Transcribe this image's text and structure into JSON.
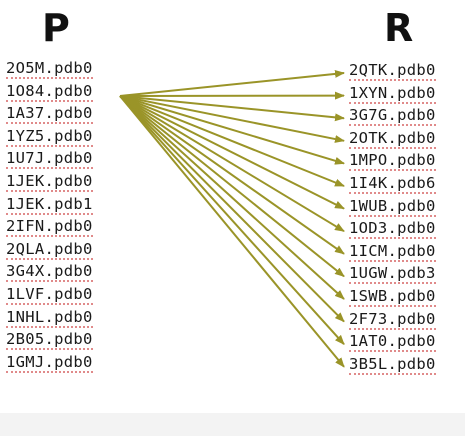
{
  "titles": {
    "left": "P",
    "right": "R"
  },
  "left_items": [
    "2O5M.pdb0",
    "1O84.pdb0",
    "1A37.pdb0",
    "1YZ5.pdb0",
    "1U7J.pdb0",
    "1JEK.pdb0",
    "1JEK.pdb1",
    "2IFN.pdb0",
    "2QLA.pdb0",
    "3G4X.pdb0",
    "1LVF.pdb0",
    "1NHL.pdb0",
    "2B05.pdb0",
    "1GMJ.pdb0"
  ],
  "right_items": [
    "2QTK.pdb0",
    "1XYN.pdb0",
    "3G7G.pdb0",
    "2OTK.pdb0",
    "1MPO.pdb0",
    "1I4K.pdb6",
    "1WUB.pdb0",
    "1OD3.pdb0",
    "1ICM.pdb0",
    "1UGW.pdb3",
    "1SWB.pdb0",
    "2F73.pdb0",
    "1AT0.pdb0",
    "3B5L.pdb0"
  ],
  "arrow_source_index": 1,
  "colors": {
    "arrow": "#9a9428",
    "underline": "#e08a8a"
  }
}
